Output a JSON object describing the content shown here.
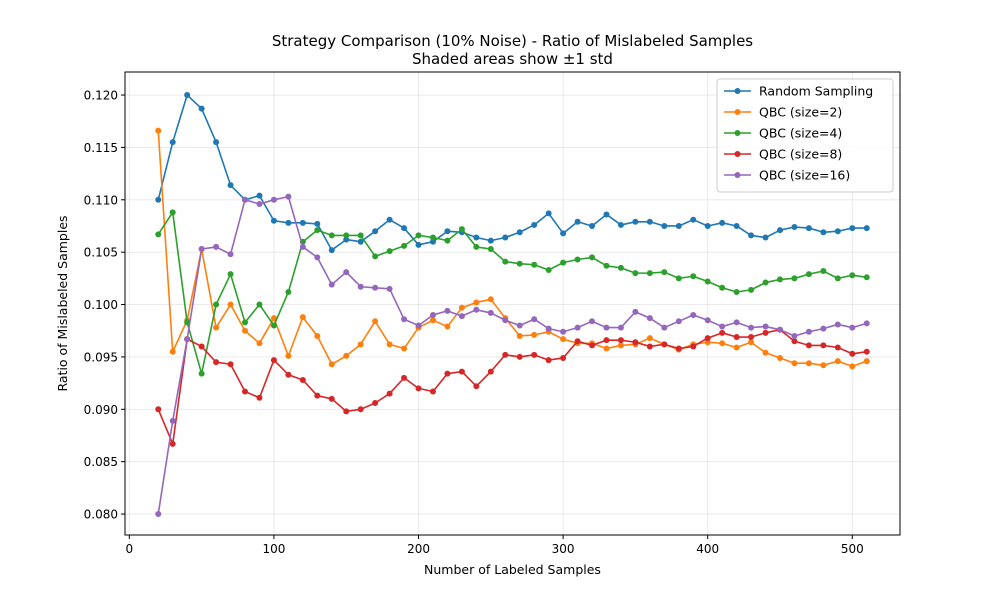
{
  "chart_data": {
    "type": "line",
    "title": "Strategy Comparison (10% Noise) - Ratio of Mislabeled Samples",
    "subtitle": "Shaded areas show ±1 std",
    "xlabel": "Number of Labeled Samples",
    "ylabel": "Ratio of Mislabeled Samples",
    "xlim": [
      -3,
      533
    ],
    "ylim": [
      0.078,
      0.1222
    ],
    "xticks": [
      0,
      100,
      200,
      300,
      400,
      500
    ],
    "xtick_labels": [
      "0",
      "100",
      "200",
      "300",
      "400",
      "500"
    ],
    "yticks": [
      0.08,
      0.085,
      0.09,
      0.095,
      0.1,
      0.105,
      0.11,
      0.115,
      0.12
    ],
    "ytick_labels": [
      "0.080",
      "0.085",
      "0.090",
      "0.095",
      "0.100",
      "0.105",
      "0.110",
      "0.115",
      "0.120"
    ],
    "grid": true,
    "legend_position": "top-right",
    "x": [
      20,
      30,
      40,
      50,
      60,
      70,
      80,
      90,
      100,
      110,
      120,
      130,
      140,
      150,
      160,
      170,
      180,
      190,
      200,
      210,
      220,
      230,
      240,
      250,
      260,
      270,
      280,
      290,
      300,
      310,
      320,
      330,
      340,
      350,
      360,
      370,
      380,
      390,
      400,
      410,
      420,
      430,
      440,
      450,
      460,
      470,
      480,
      490,
      500,
      510
    ],
    "series": [
      {
        "name": "Random Sampling",
        "color": "#1f77b4",
        "values": [
          0.11,
          0.1155,
          0.12,
          0.1187,
          0.1155,
          0.1114,
          0.11,
          0.1104,
          0.108,
          0.1078,
          0.1078,
          0.1077,
          0.1052,
          0.1062,
          0.106,
          0.107,
          0.1081,
          0.1073,
          0.1057,
          0.106,
          0.107,
          0.1069,
          0.1064,
          0.1061,
          0.1064,
          0.1069,
          0.1076,
          0.1087,
          0.1068,
          0.1079,
          0.1075,
          0.1086,
          0.1076,
          0.1079,
          0.1079,
          0.1075,
          0.1075,
          0.1081,
          0.1075,
          0.1078,
          0.1075,
          0.1066,
          0.1064,
          0.1071,
          0.1074,
          0.1073,
          0.1069,
          0.107,
          0.1073,
          0.1073
        ]
      },
      {
        "name": "QBC (size=2)",
        "color": "#ff7f0e",
        "values": [
          0.1166,
          0.0955,
          0.0985,
          0.1053,
          0.0978,
          0.1,
          0.0975,
          0.0963,
          0.0987,
          0.0951,
          0.0988,
          0.097,
          0.0943,
          0.0951,
          0.0962,
          0.0984,
          0.0962,
          0.0958,
          0.0978,
          0.0985,
          0.0979,
          0.0997,
          0.1002,
          0.1005,
          0.0987,
          0.097,
          0.0971,
          0.0974,
          0.0967,
          0.0963,
          0.0963,
          0.0958,
          0.0961,
          0.0962,
          0.0968,
          0.0962,
          0.0957,
          0.0962,
          0.0964,
          0.0963,
          0.0959,
          0.0964,
          0.0954,
          0.0949,
          0.0944,
          0.0944,
          0.0942,
          0.0946,
          0.0941,
          0.0946
        ]
      },
      {
        "name": "QBC (size=4)",
        "color": "#2ca02c",
        "values": [
          0.1067,
          0.1088,
          0.0983,
          0.0934,
          0.1,
          0.1029,
          0.0983,
          0.1,
          0.098,
          0.1012,
          0.106,
          0.1071,
          0.1066,
          0.1066,
          0.1066,
          0.1046,
          0.1051,
          0.1056,
          0.1066,
          0.1064,
          0.1061,
          0.1072,
          0.1055,
          0.1053,
          0.1041,
          0.1039,
          0.1038,
          0.1033,
          0.104,
          0.1043,
          0.1045,
          0.1037,
          0.1035,
          0.103,
          0.103,
          0.1031,
          0.1025,
          0.1027,
          0.1022,
          0.1016,
          0.1012,
          0.1014,
          0.1021,
          0.1024,
          0.1025,
          0.1029,
          0.1032,
          0.1025,
          0.1028,
          0.1026
        ]
      },
      {
        "name": "QBC (size=8)",
        "color": "#d62728",
        "values": [
          0.09,
          0.0867,
          0.0967,
          0.096,
          0.0945,
          0.0943,
          0.0917,
          0.0911,
          0.0947,
          0.0933,
          0.0928,
          0.0913,
          0.091,
          0.0898,
          0.09,
          0.0906,
          0.0915,
          0.093,
          0.092,
          0.0917,
          0.0934,
          0.0936,
          0.0922,
          0.0936,
          0.0952,
          0.095,
          0.0952,
          0.0947,
          0.0949,
          0.0965,
          0.0961,
          0.0966,
          0.0966,
          0.0964,
          0.096,
          0.0962,
          0.0958,
          0.096,
          0.0968,
          0.0973,
          0.0969,
          0.0969,
          0.0973,
          0.0976,
          0.0965,
          0.0961,
          0.0961,
          0.0959,
          0.0953,
          0.0955
        ]
      },
      {
        "name": "QBC (size=16)",
        "color": "#9467bd",
        "values": [
          0.08,
          0.0889,
          0.0967,
          0.1053,
          0.1055,
          0.1048,
          0.11,
          0.1096,
          0.11,
          0.1103,
          0.1055,
          0.1045,
          0.1019,
          0.1031,
          0.1017,
          0.1016,
          0.1015,
          0.0986,
          0.098,
          0.099,
          0.0994,
          0.0989,
          0.0995,
          0.0992,
          0.0985,
          0.098,
          0.0986,
          0.0977,
          0.0974,
          0.0978,
          0.0984,
          0.0978,
          0.0978,
          0.0993,
          0.0987,
          0.0978,
          0.0984,
          0.099,
          0.0985,
          0.0979,
          0.0983,
          0.0978,
          0.0979,
          0.0976,
          0.097,
          0.0974,
          0.0977,
          0.0981,
          0.0978,
          0.0982
        ]
      }
    ]
  }
}
